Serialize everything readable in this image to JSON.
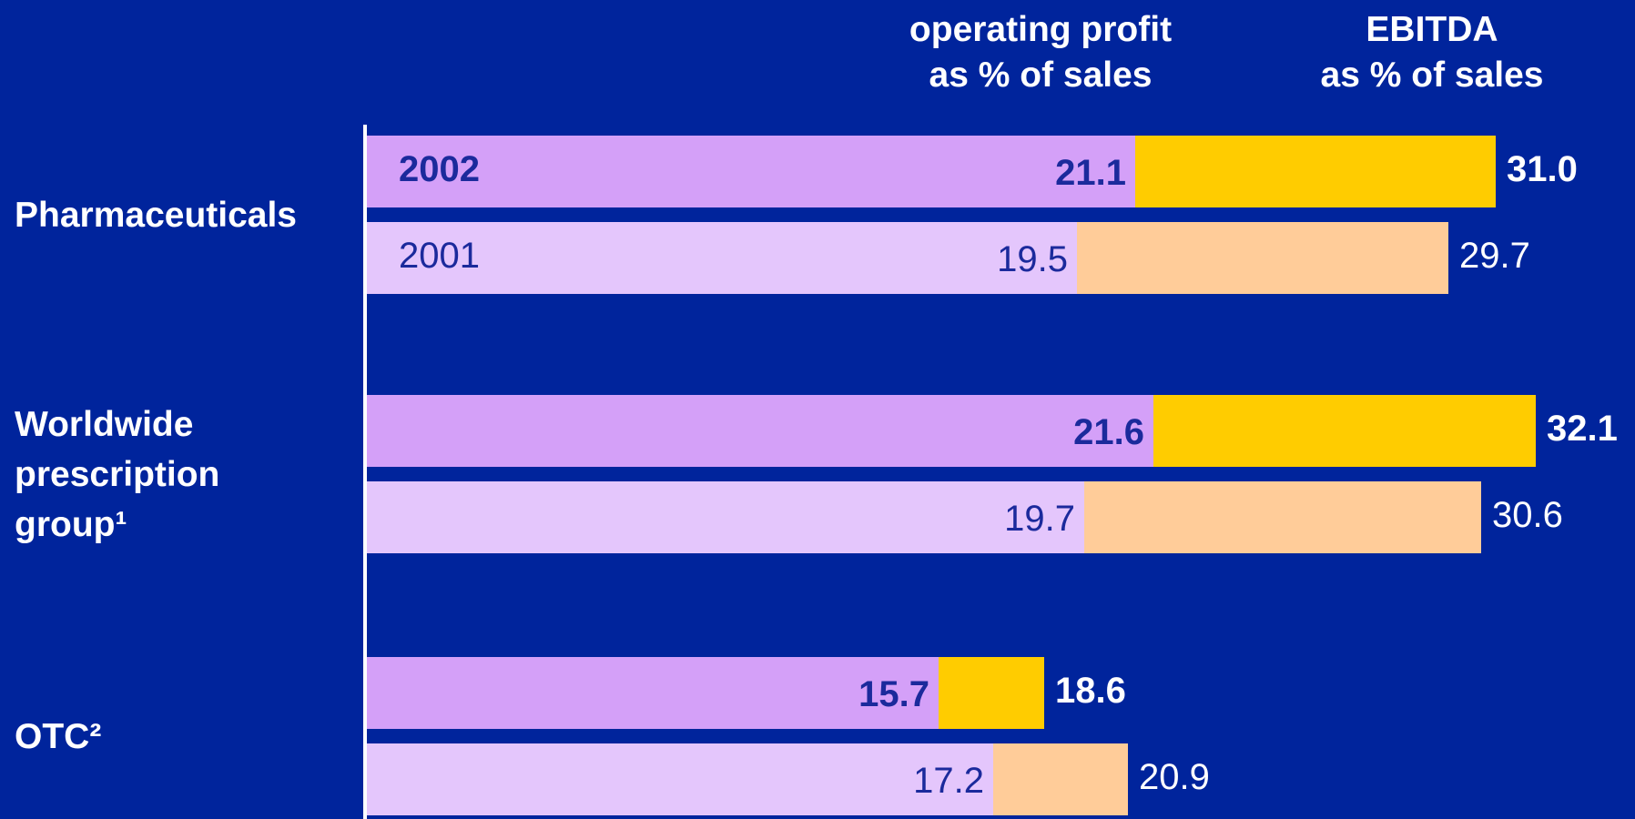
{
  "chart_data": {
    "type": "bar",
    "headers": [
      [
        "operating profit",
        "as % of sales"
      ],
      [
        "EBITDA",
        "as % of sales"
      ]
    ],
    "categories": [
      "Pharmaceuticals",
      "Worldwide prescription group¹",
      "OTC²"
    ],
    "series": [
      {
        "name": "2002",
        "bold": true,
        "operating_profit": {
          "color": "#d4a0f8",
          "values": [
            21.1,
            21.6,
            15.7
          ]
        },
        "ebitda": {
          "color": "#ffcc00",
          "values": [
            31,
            32.1,
            18.6
          ],
          "value_labels": [
            "31.0",
            "32.1",
            "18.6"
          ]
        }
      },
      {
        "name": "2001",
        "bold": false,
        "operating_profit": {
          "color": "#e4c6fc",
          "values": [
            19.5,
            19.7,
            17.2
          ]
        },
        "ebitda": {
          "color": "#ffcc99",
          "values": [
            29.7,
            30.6,
            20.9
          ]
        }
      }
    ]
  }
}
